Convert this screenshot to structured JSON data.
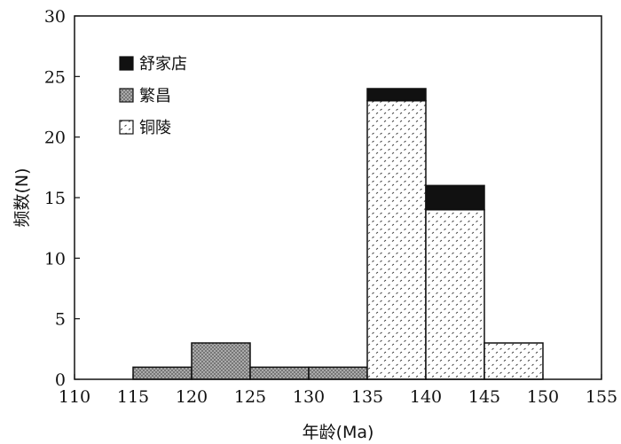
{
  "chart_data": {
    "type": "bar",
    "subtype": "stacked-histogram",
    "title": "",
    "xlabel": "年龄(Ma)",
    "ylabel": "频数(N)",
    "xlim": [
      110,
      155
    ],
    "ylim": [
      0,
      30
    ],
    "xticks": [
      "110",
      "115",
      "120",
      "125",
      "130",
      "135",
      "140",
      "145",
      "150",
      "155"
    ],
    "yticks": [
      "0",
      "5",
      "10",
      "15",
      "20",
      "25",
      "30"
    ],
    "grid": false,
    "legend_position": "top-left",
    "bins": [
      {
        "start": 115,
        "end": 120
      },
      {
        "start": 120,
        "end": 125
      },
      {
        "start": 125,
        "end": 130
      },
      {
        "start": 130,
        "end": 135
      },
      {
        "start": 135,
        "end": 140
      },
      {
        "start": 140,
        "end": 145
      },
      {
        "start": 145,
        "end": 150
      }
    ],
    "series": [
      {
        "name": "铜陵",
        "pattern": "dotted-white",
        "values": [
          0,
          0,
          0,
          0,
          23,
          14,
          3
        ]
      },
      {
        "name": "繁昌",
        "pattern": "crosshatch-gray",
        "values": [
          1,
          3,
          1,
          1,
          0,
          0,
          0
        ]
      },
      {
        "name": "舒家店",
        "pattern": "solid-black",
        "values": [
          0,
          0,
          0,
          0,
          1,
          2,
          0
        ]
      }
    ],
    "legend_order": [
      "舒家店",
      "繁昌",
      "铜陵"
    ]
  }
}
